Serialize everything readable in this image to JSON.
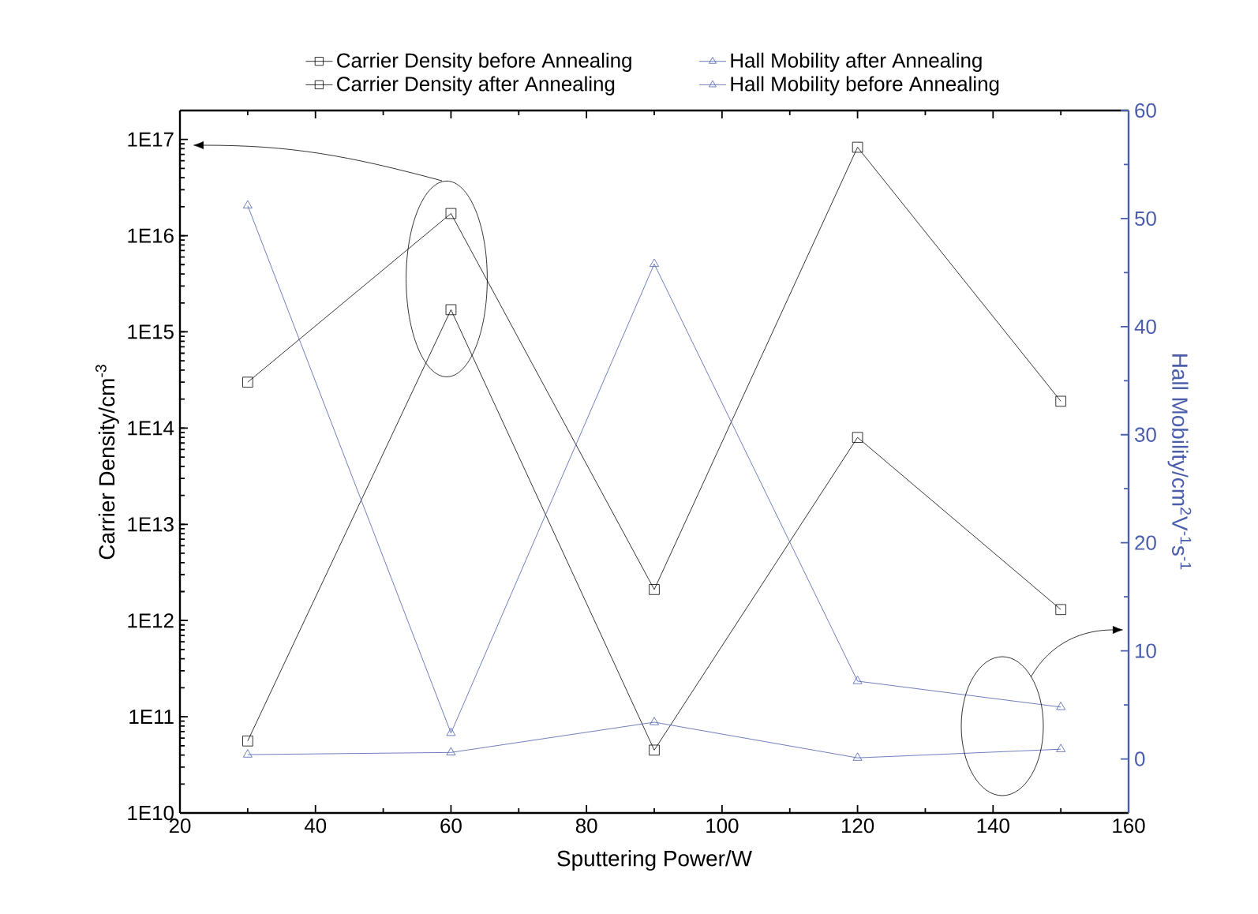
{
  "chart_data": {
    "type": "line",
    "xlabel": "Sputtering Power/W",
    "ylabel": "Carrier Density/cm$^{-3}$",
    "y2label": "Hall Mobility/cm$^{2}$V$^{-1}$s$^{-1}$",
    "x": [
      30,
      60,
      90,
      120,
      150
    ],
    "series": [
      {
        "name": "Carrier Density before Annealing",
        "color": "#000000",
        "marker": "square",
        "values": [
          56000000000.0,
          1700000000000000.0,
          45000000000.0,
          80000000000000.0,
          1300000000000.0
        ]
      },
      {
        "name": "Carrier Density after Annealing",
        "color": "#000000",
        "marker": "square",
        "values": [
          300000000000000.0,
          1.7e+16,
          2100000000000.0,
          8.3e+16,
          190000000000000.0
        ]
      },
      {
        "name": "Hall Mobility after Annealing",
        "color": "#4a5eab",
        "marker": "triangle",
        "axis": "y2",
        "values": [
          0.4,
          0.6,
          3.4,
          0.1,
          0.9
        ]
      },
      {
        "name": "Hall Mobility before Annealing",
        "color": "#4a5eab",
        "marker": "triangle",
        "axis": "y2",
        "values": [
          51.2,
          2.4,
          45.8,
          7.2,
          4.8
        ]
      }
    ],
    "log": "y",
    "legend": "top",
    "line_style": "solid",
    "xlim": [
      20,
      160
    ],
    "xticks": [
      20,
      40,
      60,
      80,
      100,
      120,
      140,
      160
    ],
    "ylim": [
      10000000000.0,
      2e+17
    ],
    "yticks": [
      {
        "value": 10000000000.0,
        "label": "1E10"
      },
      {
        "value": 100000000000.0,
        "label": "1E11"
      },
      {
        "value": 1000000000000.0,
        "label": "1E12"
      },
      {
        "value": 10000000000000.0,
        "label": "1E13"
      },
      {
        "value": 100000000000000.0,
        "label": "1E14"
      },
      {
        "value": 1000000000000000.0,
        "label": "1E15"
      },
      {
        "value": 1e+16,
        "label": "1E16"
      },
      {
        "value": 1e+17,
        "label": "1E17"
      }
    ],
    "y2lim": [
      -5,
      60
    ],
    "y2ticks": [
      0,
      10,
      20,
      30,
      40,
      50,
      60
    ]
  }
}
